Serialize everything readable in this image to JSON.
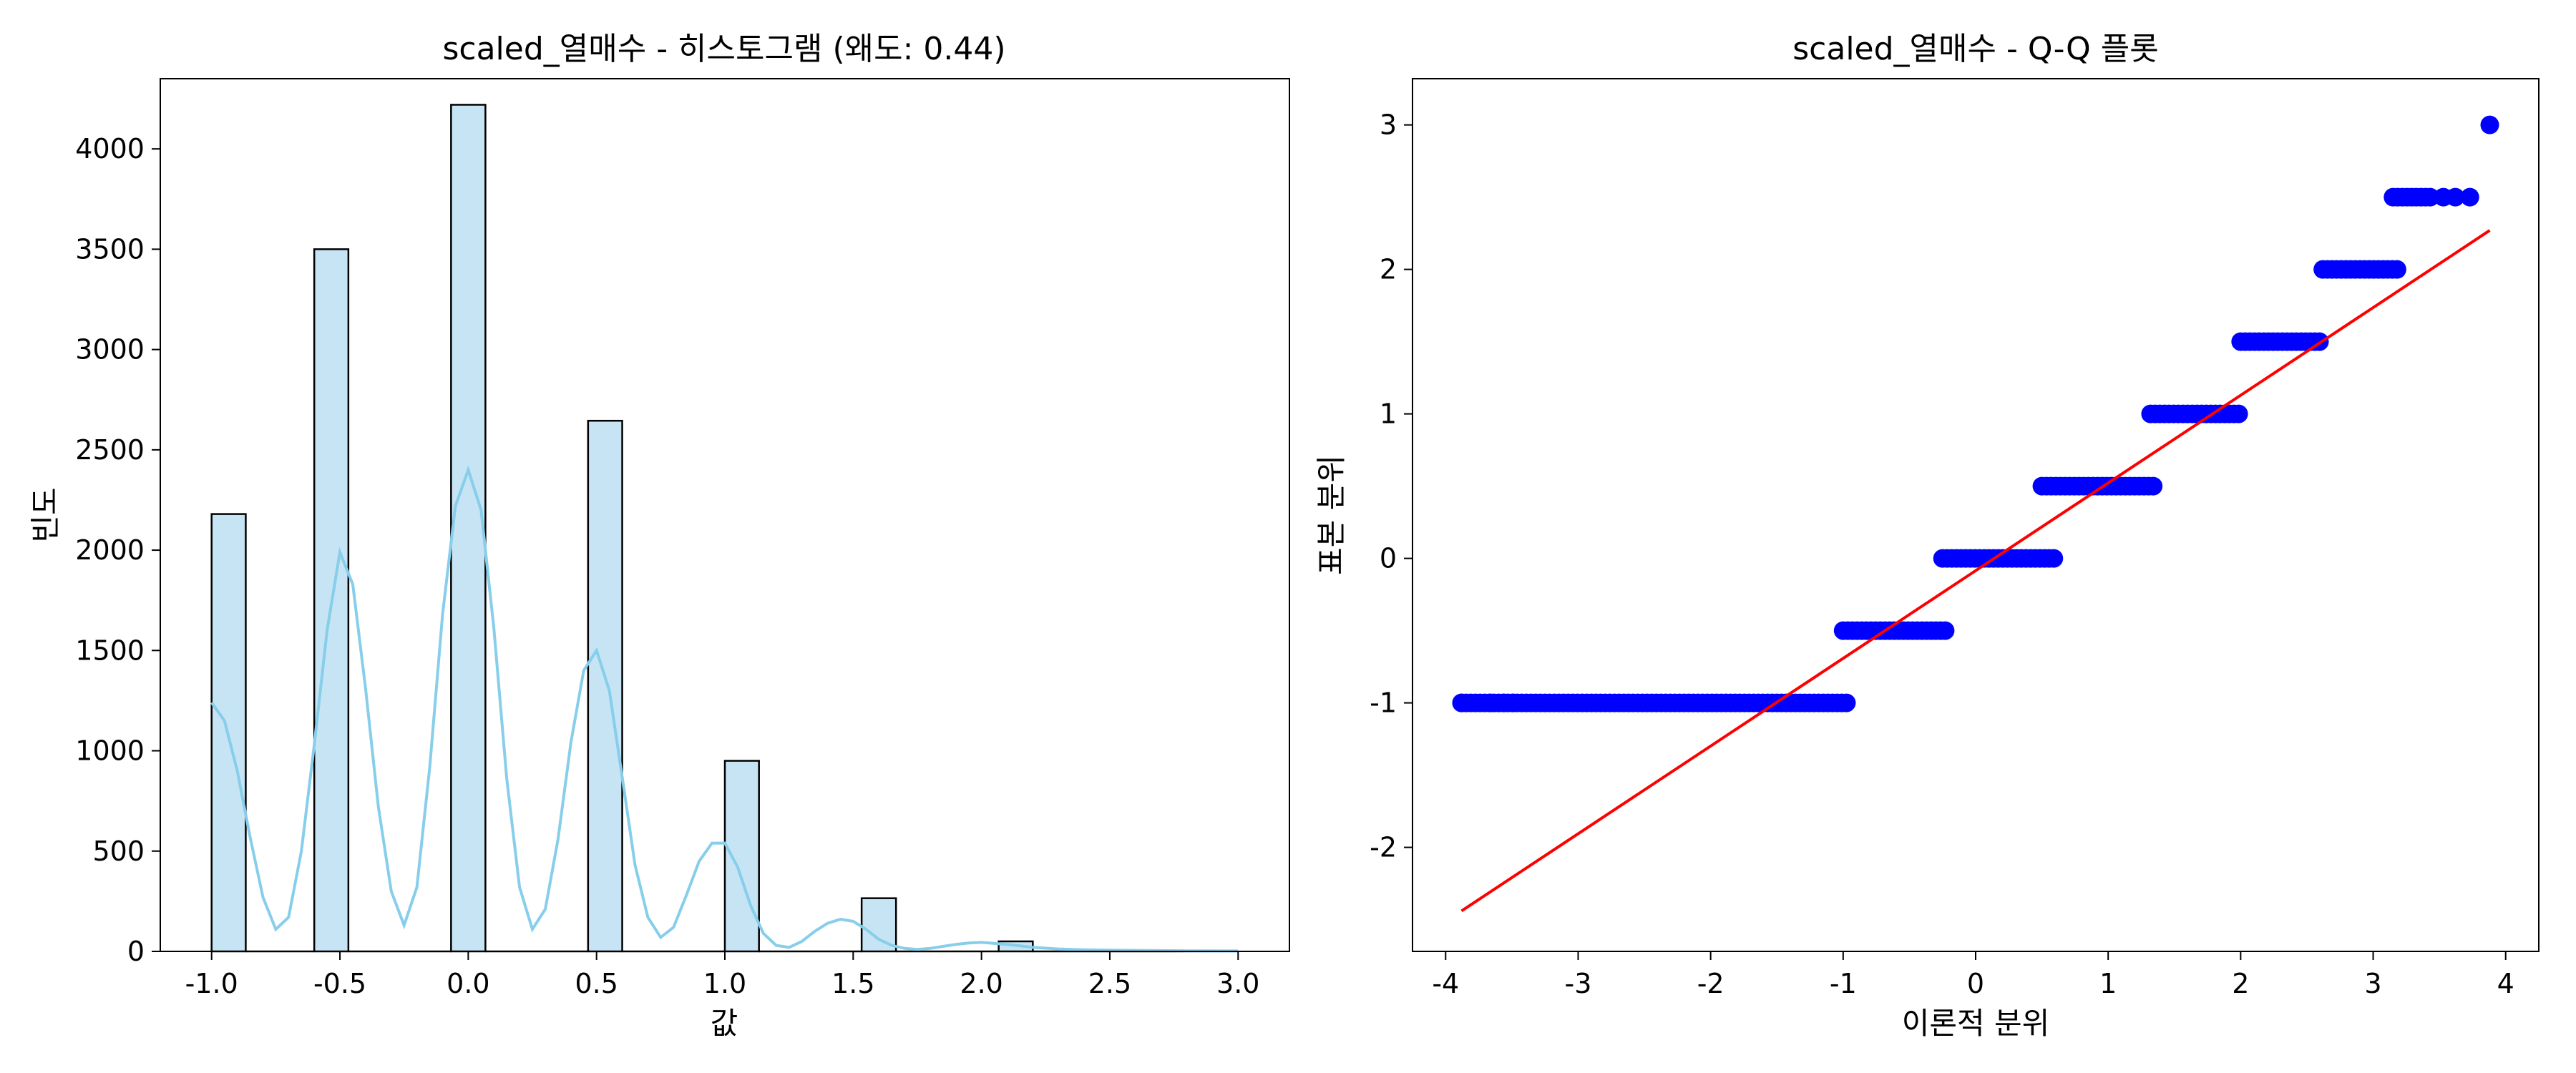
{
  "chart_data": [
    {
      "type": "bar",
      "title": "scaled_열매수 - 히스토그램 (왜도: 0.44)",
      "xlabel": "값",
      "ylabel": "빈도",
      "xlim": [
        -1.2,
        3.2
      ],
      "ylim": [
        0,
        4350
      ],
      "xticks": [
        -1.0,
        -0.5,
        0.0,
        0.5,
        1.0,
        1.5,
        2.0,
        2.5,
        3.0
      ],
      "xtick_labels": [
        "-1.0",
        "-0.5",
        "0.0",
        "0.5",
        "1.0",
        "1.5",
        "2.0",
        "2.5",
        "3.0"
      ],
      "yticks": [
        0,
        500,
        1000,
        1500,
        2000,
        2500,
        3000,
        3500,
        4000
      ],
      "ytick_labels": [
        "0",
        "500",
        "1000",
        "1500",
        "2000",
        "2500",
        "3000",
        "3500",
        "4000"
      ],
      "grid": false,
      "bin_edges": [
        -1.0,
        -0.867,
        -0.733,
        -0.6,
        -0.467,
        -0.333,
        -0.2,
        -0.067,
        0.067,
        0.2,
        0.333,
        0.467,
        0.6,
        0.733,
        0.867,
        1.0,
        1.133,
        1.267,
        1.4,
        1.533,
        1.667,
        1.8,
        1.933,
        2.067,
        2.2,
        2.333,
        2.467,
        2.6,
        2.733,
        2.867,
        3.0
      ],
      "counts": [
        2180,
        0,
        0,
        3500,
        0,
        0,
        0,
        4220,
        0,
        0,
        0,
        2645,
        0,
        0,
        0,
        950,
        0,
        0,
        0,
        265,
        0,
        0,
        0,
        50,
        0,
        0,
        0,
        0,
        0,
        0
      ],
      "kde": {
        "name": "KDE",
        "x": [
          -1.0,
          -0.95,
          -0.9,
          -0.85,
          -0.8,
          -0.75,
          -0.7,
          -0.65,
          -0.6,
          -0.55,
          -0.5,
          -0.45,
          -0.4,
          -0.35,
          -0.3,
          -0.25,
          -0.2,
          -0.15,
          -0.1,
          -0.05,
          0.0,
          0.05,
          0.1,
          0.15,
          0.2,
          0.25,
          0.3,
          0.35,
          0.4,
          0.45,
          0.5,
          0.55,
          0.6,
          0.65,
          0.7,
          0.75,
          0.8,
          0.85,
          0.9,
          0.95,
          1.0,
          1.05,
          1.1,
          1.15,
          1.2,
          1.25,
          1.3,
          1.35,
          1.4,
          1.45,
          1.5,
          1.55,
          1.6,
          1.65,
          1.7,
          1.75,
          1.8,
          1.85,
          1.9,
          1.95,
          2.0,
          2.1,
          2.2,
          2.3,
          2.4,
          2.5,
          2.6,
          2.7,
          2.8,
          3.0
        ],
        "y": [
          1240,
          1150,
          900,
          570,
          270,
          110,
          170,
          500,
          1030,
          1600,
          1990,
          1830,
          1310,
          720,
          300,
          130,
          320,
          920,
          1680,
          2220,
          2400,
          2200,
          1610,
          860,
          320,
          110,
          210,
          560,
          1040,
          1400,
          1500,
          1300,
          870,
          430,
          170,
          70,
          120,
          280,
          450,
          540,
          540,
          420,
          230,
          90,
          30,
          20,
          50,
          100,
          140,
          160,
          150,
          110,
          60,
          30,
          15,
          10,
          15,
          25,
          35,
          42,
          45,
          35,
          20,
          12,
          8,
          6,
          5,
          4,
          3,
          2
        ]
      },
      "colors": {
        "bar_fill": "#c6e4f4",
        "bar_edge": "#000000",
        "kde": "#87ceeb"
      }
    },
    {
      "type": "scatter",
      "title": "scaled_열매수 - Q-Q 플롯",
      "xlabel": "이론적 분위",
      "ylabel": "표본 분위",
      "xlim": [
        -4.25,
        4.25
      ],
      "ylim": [
        -2.72,
        3.32
      ],
      "xticks": [
        -4,
        -3,
        -2,
        -1,
        0,
        1,
        2,
        3,
        4
      ],
      "xtick_labels": [
        "-4",
        "-3",
        "-2",
        "-1",
        "0",
        "1",
        "2",
        "3",
        "4"
      ],
      "yticks": [
        -2,
        -1,
        0,
        1,
        2,
        3
      ],
      "ytick_labels": [
        "-2",
        "-1",
        "0",
        "1",
        "2",
        "3"
      ],
      "grid": false,
      "segments": [
        {
          "y": -1.0,
          "x_from": -3.88,
          "x_to": -0.97,
          "sparse": [
            -3.88,
            -3.66,
            -3.56,
            -3.49
          ]
        },
        {
          "y": -0.5,
          "x_from": -1.0,
          "x_to": -0.23,
          "sparse": []
        },
        {
          "y": 0.0,
          "x_from": -0.25,
          "x_to": 0.6,
          "sparse": []
        },
        {
          "y": 0.5,
          "x_from": 0.5,
          "x_to": 1.35,
          "sparse": []
        },
        {
          "y": 1.0,
          "x_from": 1.32,
          "x_to": 2.0,
          "sparse": []
        },
        {
          "y": 1.5,
          "x_from": 2.0,
          "x_to": 2.62,
          "sparse": []
        },
        {
          "y": 2.0,
          "x_from": 2.62,
          "x_to": 3.2,
          "sparse": []
        },
        {
          "y": 2.5,
          "x_from": 3.15,
          "x_to": 3.45,
          "sparse": [
            3.53,
            3.62,
            3.73
          ]
        },
        {
          "y": 3.0,
          "x_from": 3.88,
          "x_to": 3.88,
          "sparse": [
            3.88
          ]
        }
      ],
      "fit_line": {
        "x": [
          -3.88,
          3.88
        ],
        "y": [
          -2.44,
          2.27
        ]
      },
      "colors": {
        "points": "#0000ff",
        "fit_line": "#ff0000"
      }
    }
  ]
}
